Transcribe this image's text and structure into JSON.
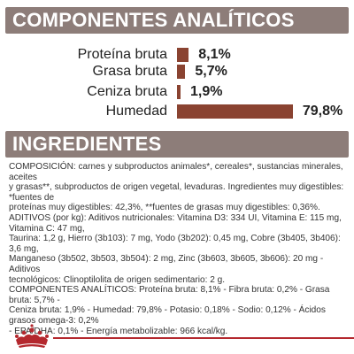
{
  "analytics": {
    "title": "COMPONENTES ANALÍTICOS",
    "rows": [
      {
        "label": "Proteína bruta",
        "value": "8,1%",
        "percent": 8.1
      },
      {
        "label": "Grasa bruta",
        "value": "5,7%",
        "percent": 5.7
      },
      {
        "label": "Ceniza bruta",
        "value": "1,9%",
        "percent": 1.9
      },
      {
        "label": "Humedad",
        "value": "79,8%",
        "percent": 79.8
      }
    ],
    "bar_color": "#8a4331"
  },
  "ingredients": {
    "title": "INGREDIENTES",
    "lines": [
      "COMPOSICIÓN: carnes y subproductos animales*, cereales*, sustancias minerales, aceites",
      "y grasas**, subproductos de origen vegetal, levaduras. Ingredientes muy digestibles: *fuentes de",
      "proteínas muy digestibles: 42,3%, **fuentes de grasas muy digestibles: 0,36%.",
      "ADITIVOS (por kg): Aditivos nutricionales: Vitamina D3: 334 UI, Vitamina E: 115 mg, Vitamina C: 47 mg,",
      "Taurina: 1,2 g, Hierro (3b103): 7 mg, Yodo (3b202): 0,45 mg, Cobre (3b405, 3b406): 3,6 mg,",
      "Manganeso (3b502, 3b503, 3b504): 2 mg, Zinc (3b603, 3b605, 3b606): 20 mg - Aditivos",
      "tecnológicos: Clinoptilolita de origen sedimentario: 2 g.",
      "COMPONENTES ANALÍTICOS: Proteína bruta: 8,1% - Fibra bruta: 0,2% - Grasa bruta: 5,7% -",
      "Ceniza bruta: 1,9% - Humedad: 79,8% - Potasio: 0,18% - Sodio: 0,12% - Ácidos grasos omega-3: 0,2%",
      "- EPA/DHA: 0,1% - Energía metabolizable: 966 kcal/kg."
    ]
  },
  "colors": {
    "header_bg": "#8d7d79",
    "brand_red": "#b4282e"
  }
}
